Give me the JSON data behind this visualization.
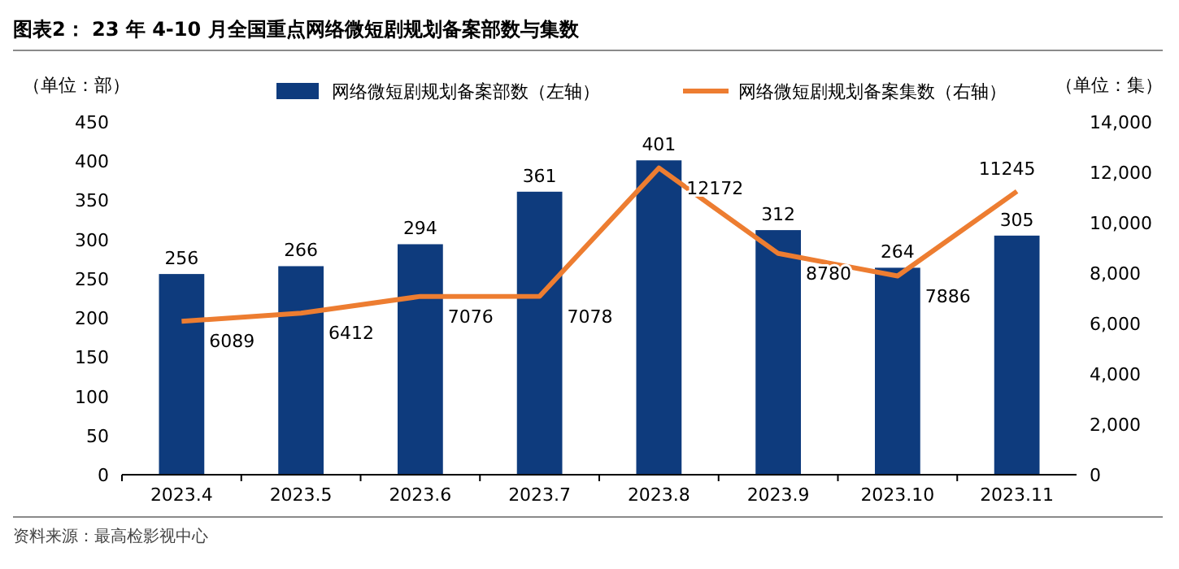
{
  "chart_data": {
    "type": "bar",
    "title": "图表2：  23 年 4-10 月全国重点网络微短剧规划备案部数与集数",
    "ylabel": "（单位：部）",
    "y2label": "（单位：集）",
    "categories": [
      "2023.4",
      "2023.5",
      "2023.6",
      "2023.7",
      "2023.8",
      "2023.9",
      "2023.10",
      "2023.11"
    ],
    "series": [
      {
        "name": "网络微短剧规划备案部数（左轴）",
        "color": "#0e3b7d",
        "values": [
          256,
          266,
          294,
          361,
          401,
          312,
          264,
          305
        ]
      },
      {
        "name": "网络微短剧规划备案集数（右轴）",
        "type": "line",
        "axis": "y2",
        "color": "#ed7d31",
        "values": [
          6089,
          6412,
          7076,
          7078,
          12172,
          8780,
          7886,
          11245
        ]
      }
    ],
    "ylim": [
      0,
      450
    ],
    "yticks": [
      0,
      50,
      100,
      150,
      200,
      250,
      300,
      350,
      400,
      450
    ],
    "y2lim": [
      0,
      14000
    ],
    "y2ticks": [
      {
        "value": 0,
        "label": "0"
      },
      {
        "value": 2000,
        "label": "2,000"
      },
      {
        "value": 4000,
        "label": "4,000"
      },
      {
        "value": 6000,
        "label": "6,000"
      },
      {
        "value": 8000,
        "label": "8,000"
      },
      {
        "value": 10000,
        "label": "10,000"
      },
      {
        "value": 12000,
        "label": "12,000"
      },
      {
        "value": 14000,
        "label": "14,000"
      }
    ],
    "data_labels": true,
    "legend": "top",
    "grid": false,
    "marker": "none",
    "line_style": "solid",
    "annotations": [
      "资料来源：最高检影视中心"
    ]
  }
}
